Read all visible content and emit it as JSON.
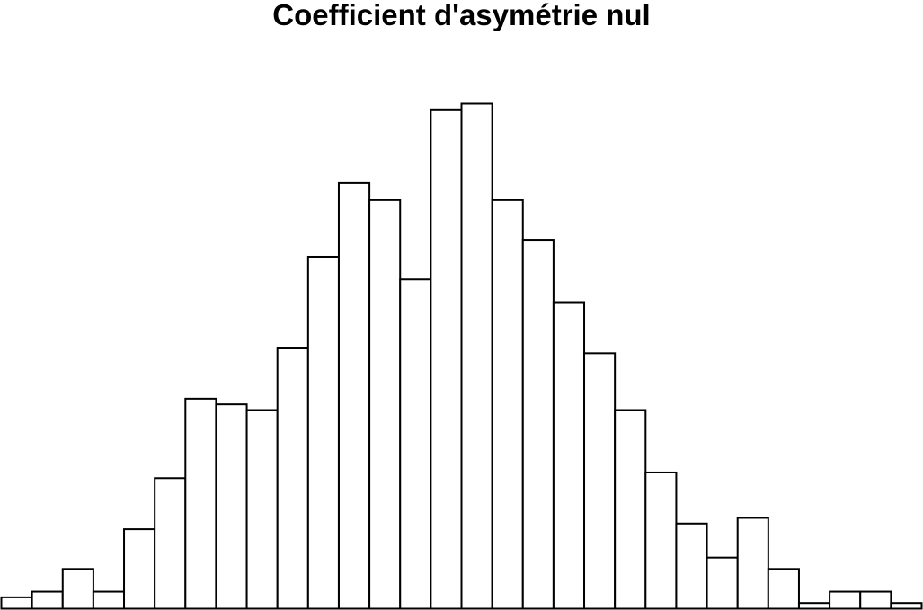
{
  "chart_data": {
    "type": "bar",
    "title": "Coefficient d'asymétrie nul",
    "xlabel": "",
    "ylabel": "",
    "axes_shown": false,
    "grid": false,
    "bar_fill": "#ffffff",
    "bar_stroke": "#000000",
    "ylim": [
      0,
      88
    ],
    "values": [
      2,
      3,
      7,
      3,
      14,
      23,
      37,
      36,
      35,
      46,
      62,
      75,
      72,
      58,
      88,
      89,
      72,
      65,
      54,
      45,
      35,
      24,
      15,
      9,
      16,
      7,
      1,
      3,
      3,
      1
    ]
  }
}
